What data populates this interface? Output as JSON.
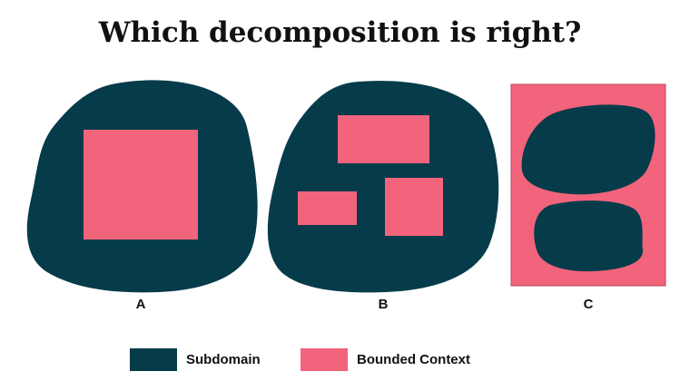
{
  "title": "Which decomposition is right?",
  "colors": {
    "subdomain": "#063b4a",
    "bounded_context": "#f2637c"
  },
  "panels": [
    {
      "label": "A"
    },
    {
      "label": "B"
    },
    {
      "label": "C"
    }
  ],
  "legend": [
    {
      "label": "Subdomain",
      "color": "#063b4a"
    },
    {
      "label": "Bounded Context",
      "color": "#f2637c"
    }
  ]
}
